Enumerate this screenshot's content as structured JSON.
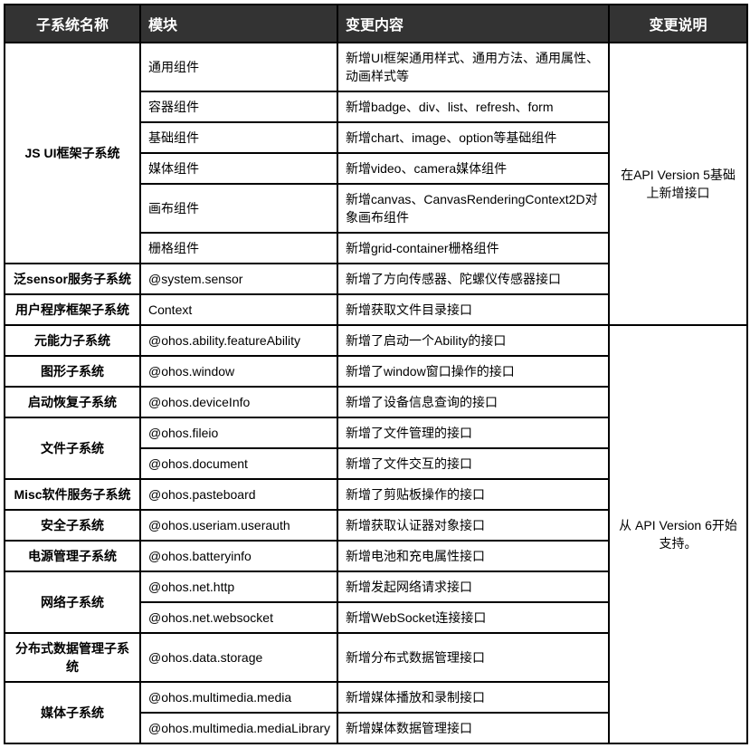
{
  "headers": {
    "subsystem": "子系统名称",
    "module": "模块",
    "content": "变更内容",
    "desc": "变更说明"
  },
  "group1": {
    "desc": "在API Version 5基础上新增接口",
    "r1": {
      "subsystem": "JS UI框架子系统",
      "module": "通用组件",
      "content": "新增UI框架通用样式、通用方法、通用属性、动画样式等"
    },
    "r2": {
      "module": "容器组件",
      "content": "新增badge、div、list、refresh、form"
    },
    "r3": {
      "module": "基础组件",
      "content": "新增chart、image、option等基础组件"
    },
    "r4": {
      "module": "媒体组件",
      "content": "新增video、camera媒体组件"
    },
    "r5": {
      "module": "画布组件",
      "content": "新增canvas、CanvasRenderingContext2D对象画布组件"
    },
    "r6": {
      "module": "栅格组件",
      "content": "新增grid-container栅格组件"
    },
    "r7": {
      "subsystem": "泛sensor服务子系统",
      "module": "@system.sensor",
      "content": "新增了方向传感器、陀螺仪传感器接口"
    },
    "r8": {
      "subsystem": "用户程序框架子系统",
      "module": "Context",
      "content": "新增获取文件目录接口"
    }
  },
  "group2": {
    "desc": "从 API Version 6开始支持。",
    "r1": {
      "subsystem": "元能力子系统",
      "module": "@ohos.ability.featureAbility",
      "content": "新增了启动一个Ability的接口"
    },
    "r2": {
      "subsystem": "图形子系统",
      "module": "@ohos.window",
      "content": "新增了window窗口操作的接口"
    },
    "r3": {
      "subsystem": "启动恢复子系统",
      "module": "@ohos.deviceInfo",
      "content": "新增了设备信息查询的接口"
    },
    "r4": {
      "subsystem": "文件子系统",
      "module": "@ohos.fileio",
      "content": "新增了文件管理的接口"
    },
    "r5": {
      "module": "@ohos.document",
      "content": "新增了文件交互的接口"
    },
    "r6": {
      "subsystem": "Misc软件服务子系统",
      "module": "@ohos.pasteboard",
      "content": "新增了剪贴板操作的接口"
    },
    "r7": {
      "subsystem": "安全子系统",
      "module": "@ohos.useriam.userauth",
      "content": "新增获取认证器对象接口"
    },
    "r8": {
      "subsystem": "电源管理子系统",
      "module": "@ohos.batteryinfo",
      "content": "新增电池和充电属性接口"
    },
    "r9": {
      "subsystem": "网络子系统",
      "module": "@ohos.net.http",
      "content": "新增发起网络请求接口"
    },
    "r10": {
      "module": "@ohos.net.websocket",
      "content": "新增WebSocket连接接口"
    },
    "r11": {
      "subsystem": "分布式数据管理子系统",
      "module": "@ohos.data.storage",
      "content": "新增分布式数据管理接口"
    },
    "r12": {
      "subsystem": "媒体子系统",
      "module": "@ohos.multimedia.media",
      "content": "新增媒体播放和录制接口"
    },
    "r13": {
      "module": "@ohos.multimedia.mediaLibrary",
      "content": "新增媒体数据管理接口"
    }
  },
  "colors": {
    "header_bg": "#333333",
    "header_text": "#ffffff",
    "border": "#000000",
    "cell_bg": "#ffffff",
    "cell_text": "#000000"
  },
  "fontsize": {
    "header": 16,
    "cell": 14
  }
}
